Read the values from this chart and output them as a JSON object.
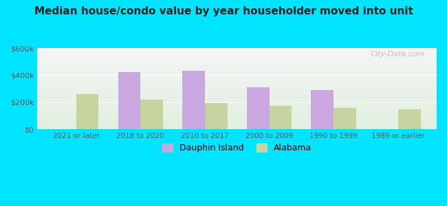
{
  "title": "Median house/condo value by year householder moved into unit",
  "categories": [
    "2021 or later",
    "2018 to 2020",
    "2010 to 2017",
    "2000 to 2009",
    "1990 to 1999",
    "1989 or earlier"
  ],
  "dauphin_island": [
    0,
    425000,
    435000,
    310000,
    290000,
    0
  ],
  "alabama": [
    260000,
    220000,
    195000,
    175000,
    160000,
    148000
  ],
  "dauphin_color": "#c9a8e0",
  "alabama_color": "#c8d4a0",
  "background_outer": "#00e5ff",
  "background_inner_top": "#f5f5f5",
  "background_inner_bottom": "#e0f0e0",
  "ylim": [
    0,
    600000
  ],
  "yticks": [
    0,
    200000,
    400000,
    600000
  ],
  "ytick_labels": [
    "$0",
    "$200k",
    "$400k",
    "$600k"
  ],
  "bar_width": 0.35,
  "legend_labels": [
    "Dauphin Island",
    "Alabama"
  ],
  "watermark": "City-Data.com"
}
